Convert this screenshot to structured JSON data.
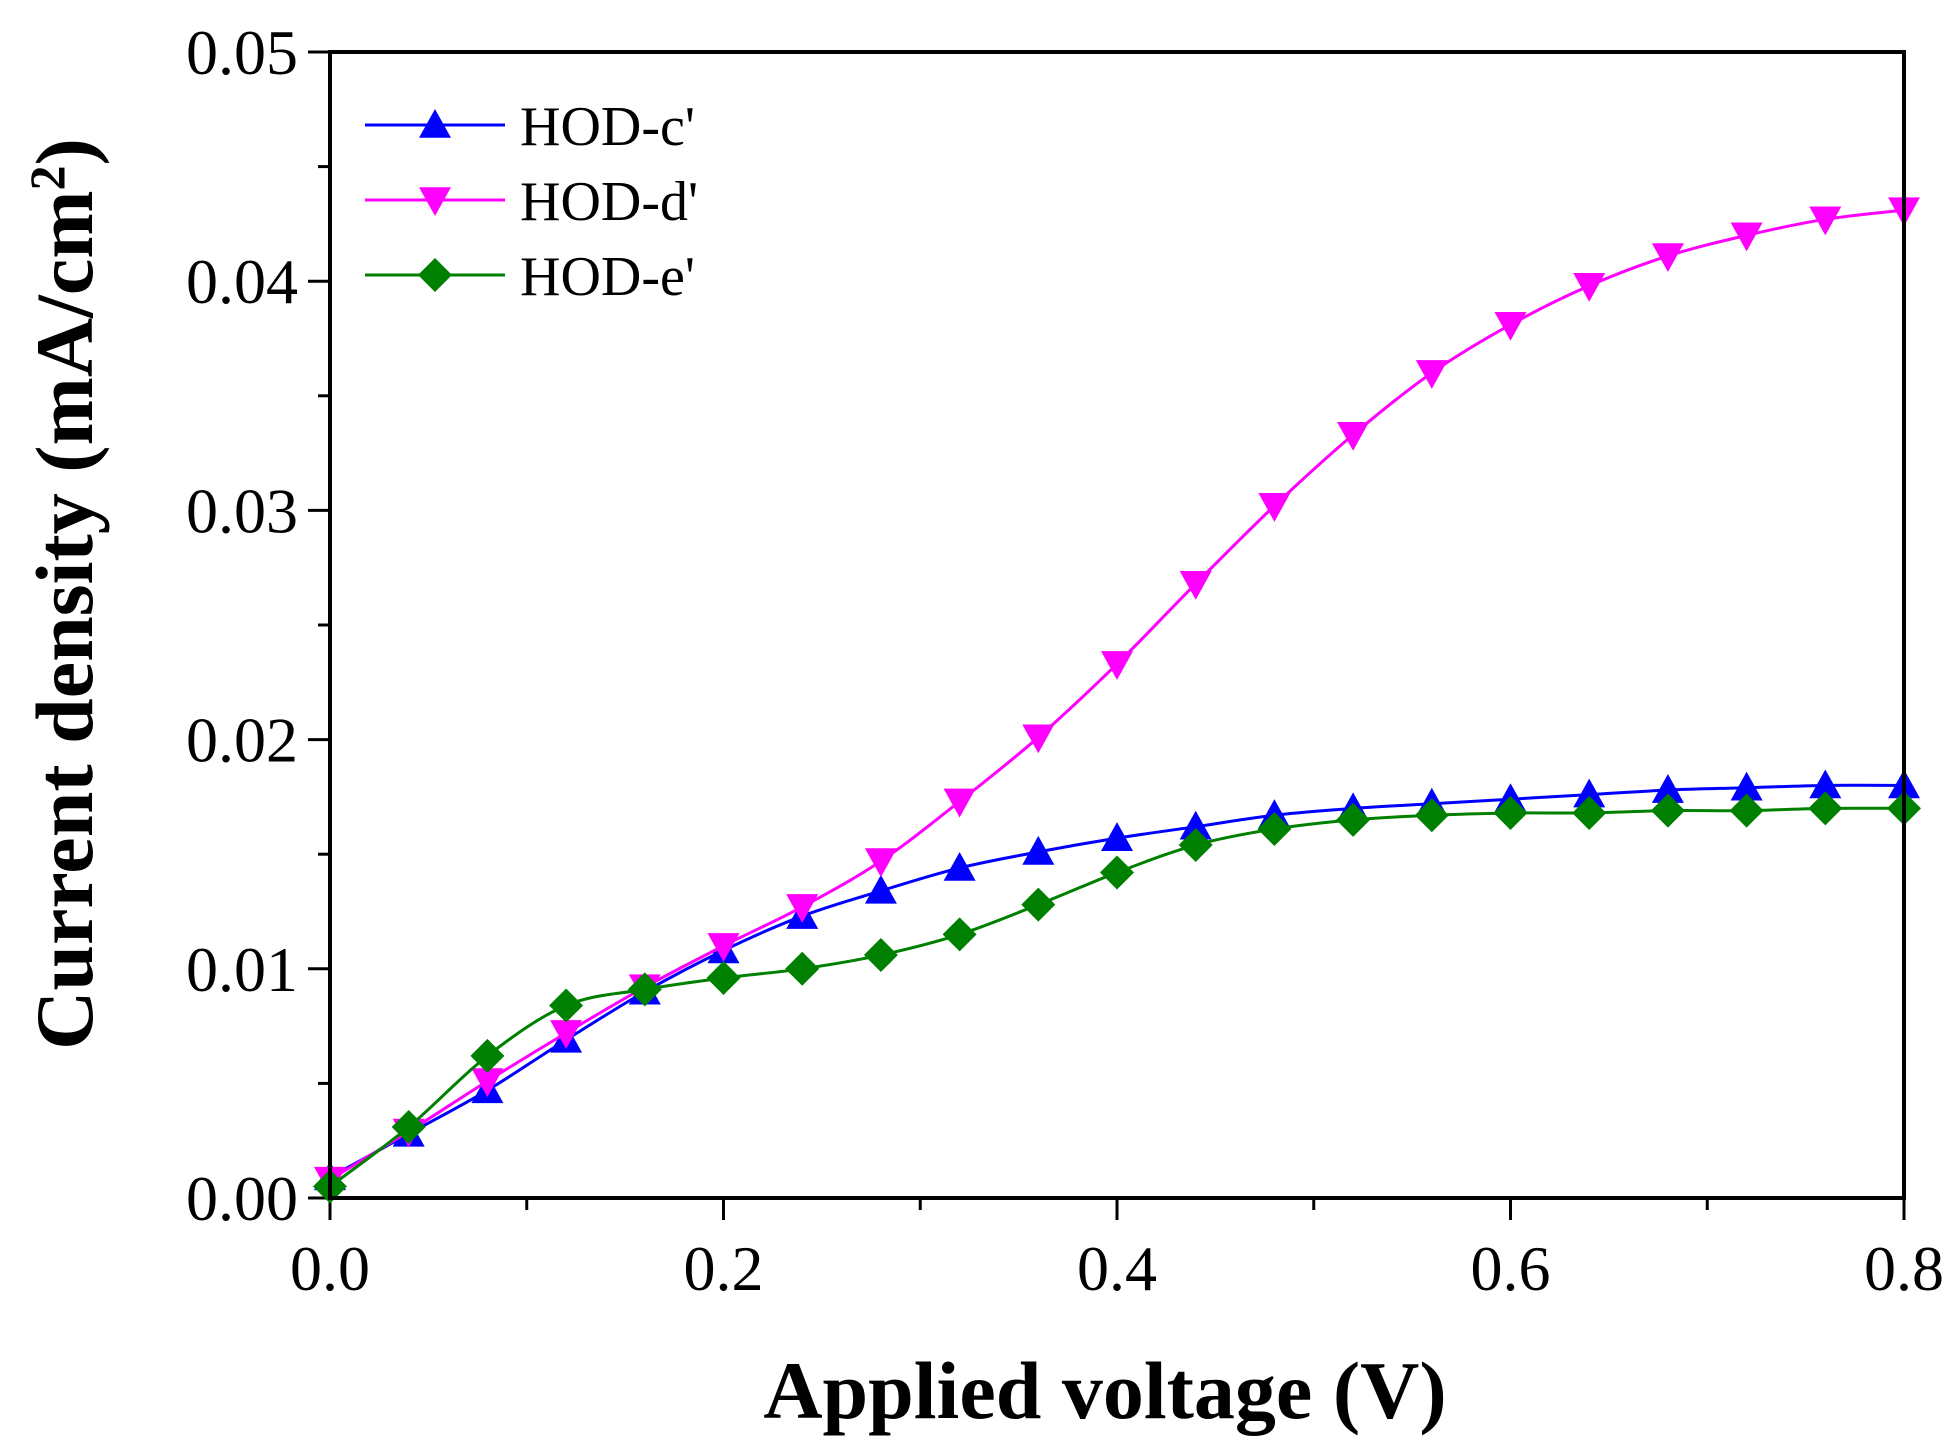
{
  "chart_data": {
    "type": "line",
    "title": "",
    "xlabel": "Applied voltage (V)",
    "ylabel": "Current density (mA/cm",
    "ylabel_sup": "2",
    "ylabel_close": ")",
    "xlim": [
      0.0,
      0.8
    ],
    "ylim": [
      0.0,
      0.05
    ],
    "x_ticks": [
      0.0,
      0.2,
      0.4,
      0.6,
      0.8
    ],
    "x_tick_labels": [
      "0.0",
      "0.2",
      "0.4",
      "0.6",
      "0.8"
    ],
    "y_ticks": [
      0.0,
      0.01,
      0.02,
      0.03,
      0.04,
      0.05
    ],
    "y_tick_labels": [
      "0.00",
      "0.01",
      "0.02",
      "0.03",
      "0.04",
      "0.05"
    ],
    "grid": false,
    "legend_position": "top-left",
    "x": [
      0.0,
      0.04,
      0.08,
      0.12,
      0.16,
      0.2,
      0.24,
      0.28,
      0.32,
      0.36,
      0.4,
      0.44,
      0.48,
      0.52,
      0.56,
      0.6,
      0.64,
      0.68,
      0.72,
      0.76,
      0.8
    ],
    "series": [
      {
        "name": "HOD-c'",
        "color": "#0000ff",
        "marker": "triangle-up",
        "values": [
          0.0009,
          0.0028,
          0.0047,
          0.0069,
          0.009,
          0.0108,
          0.0123,
          0.0134,
          0.0144,
          0.0151,
          0.0157,
          0.0162,
          0.0167,
          0.017,
          0.0172,
          0.0174,
          0.0176,
          0.0178,
          0.0179,
          0.018,
          0.018
        ]
      },
      {
        "name": "HOD-d'",
        "color": "#ff00ff",
        "marker": "triangle-down",
        "values": [
          0.0008,
          0.0029,
          0.0051,
          0.0072,
          0.0092,
          0.011,
          0.0127,
          0.0147,
          0.0173,
          0.0201,
          0.0233,
          0.0268,
          0.0302,
          0.0333,
          0.036,
          0.0381,
          0.0398,
          0.0411,
          0.042,
          0.0427,
          0.0431
        ]
      },
      {
        "name": "HOD-e'",
        "color": "#008000",
        "marker": "diamond",
        "values": [
          0.0005,
          0.0031,
          0.0062,
          0.0084,
          0.0091,
          0.0096,
          0.01,
          0.0106,
          0.0115,
          0.0128,
          0.0142,
          0.0154,
          0.0161,
          0.0165,
          0.0167,
          0.0168,
          0.0168,
          0.0169,
          0.0169,
          0.017,
          0.017
        ]
      }
    ]
  }
}
